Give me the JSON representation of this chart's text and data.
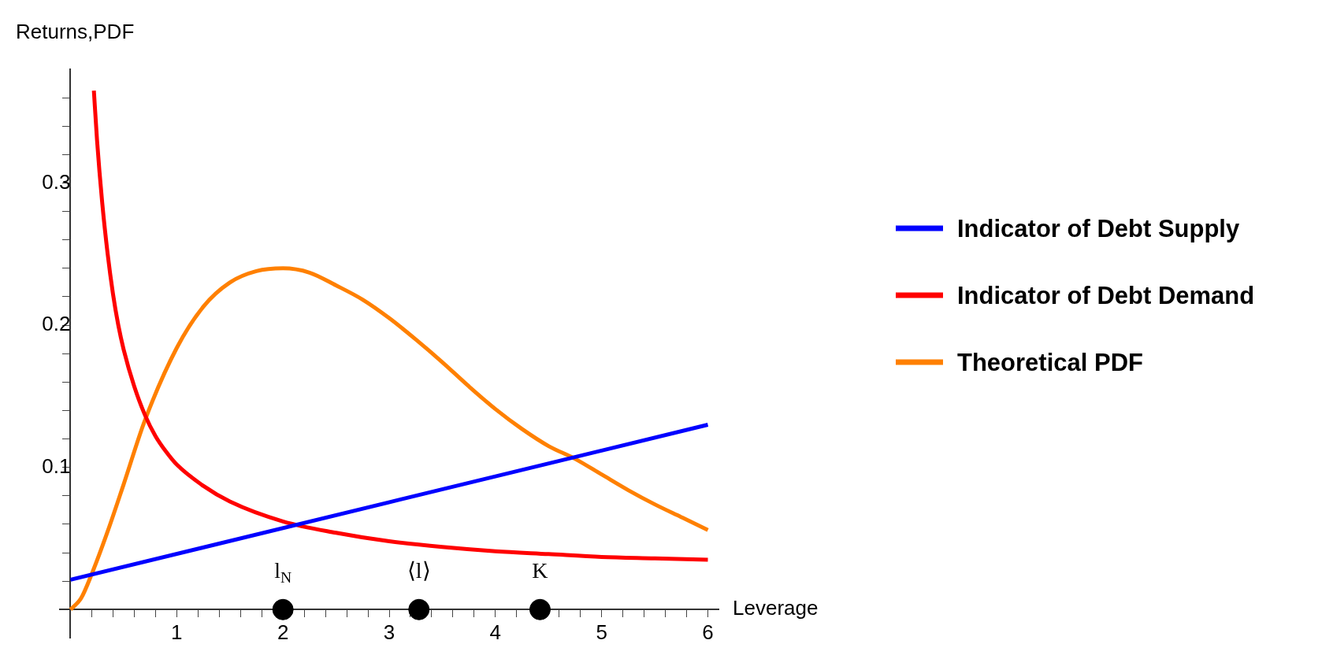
{
  "chart_data": {
    "type": "line",
    "xlabel": "Leverage",
    "ylabel": "Returns,PDF",
    "legend": "right",
    "marker": "none",
    "line_style": "solid",
    "grid": false,
    "xlim": [
      -0.1,
      6.1
    ],
    "ylim": [
      -0.02,
      0.38
    ],
    "xticks": [
      {
        "value": 0.2,
        "label": null
      },
      {
        "value": 0.4,
        "label": null
      },
      {
        "value": 0.6,
        "label": null
      },
      {
        "value": 0.8,
        "label": null
      },
      1,
      {
        "value": 1.2,
        "label": null
      },
      {
        "value": 1.4,
        "label": null
      },
      {
        "value": 1.6,
        "label": null
      },
      {
        "value": 1.8,
        "label": null
      },
      2,
      {
        "value": 2.2,
        "label": null
      },
      {
        "value": 2.4,
        "label": null
      },
      {
        "value": 2.6,
        "label": null
      },
      {
        "value": 2.8,
        "label": null
      },
      3,
      {
        "value": 3.2,
        "label": null
      },
      {
        "value": 3.4,
        "label": null
      },
      {
        "value": 3.6,
        "label": null
      },
      {
        "value": 3.8,
        "label": null
      },
      4,
      {
        "value": 4.2,
        "label": null
      },
      {
        "value": 4.4,
        "label": null
      },
      {
        "value": 4.6,
        "label": null
      },
      {
        "value": 4.8,
        "label": null
      },
      5,
      {
        "value": 5.2,
        "label": null
      },
      {
        "value": 5.4,
        "label": null
      },
      {
        "value": 5.6,
        "label": null
      },
      {
        "value": 5.8,
        "label": null
      },
      6
    ],
    "yticks": [
      {
        "value": 0.02,
        "label": null
      },
      {
        "value": 0.04,
        "label": null
      },
      {
        "value": 0.06,
        "label": null
      },
      {
        "value": 0.08,
        "label": null
      },
      0.1,
      {
        "value": 0.12,
        "label": null
      },
      {
        "value": 0.14,
        "label": null
      },
      {
        "value": 0.16,
        "label": null
      },
      {
        "value": 0.18,
        "label": null
      },
      0.2,
      {
        "value": 0.22,
        "label": null
      },
      {
        "value": 0.24,
        "label": null
      },
      {
        "value": 0.26,
        "label": null
      },
      {
        "value": 0.28,
        "label": null
      },
      0.3,
      {
        "value": 0.32,
        "label": null
      },
      {
        "value": 0.34,
        "label": null
      },
      {
        "value": 0.36,
        "label": null
      }
    ],
    "series": [
      {
        "name": "Indicator of Debt Supply",
        "color": "#0000ff",
        "x": [
          0,
          6
        ],
        "values": [
          0.021,
          0.13
        ]
      },
      {
        "name": "Indicator of Debt Demand",
        "color": "#ff0000",
        "x": [
          0.22,
          0.25,
          0.3,
          0.35,
          0.4,
          0.45,
          0.5,
          0.6,
          0.7,
          0.8,
          0.9,
          1,
          1.25,
          1.5,
          2,
          2.5,
          3,
          3.5,
          4,
          4.5,
          5,
          5.5,
          6
        ],
        "values": [
          0.365,
          0.33,
          0.285,
          0.25,
          0.222,
          0.2,
          0.183,
          0.157,
          0.137,
          0.122,
          0.111,
          0.102,
          0.087,
          0.076,
          0.062,
          0.054,
          0.048,
          0.044,
          0.041,
          0.039,
          0.037,
          0.036,
          0.035
        ]
      },
      {
        "name": "Theoretical PDF",
        "color": "#ff8000",
        "x": [
          0,
          0.1,
          0.2,
          0.35,
          0.5,
          0.7,
          1,
          1.25,
          1.5,
          1.75,
          2,
          2.25,
          2.5,
          2.75,
          3,
          3.25,
          3.5,
          3.75,
          4,
          4.25,
          4.5,
          4.75,
          5,
          5.25,
          5.5,
          5.75,
          6
        ],
        "values": [
          0,
          0.008,
          0.025,
          0.055,
          0.088,
          0.133,
          0.184,
          0.213,
          0.23,
          0.238,
          0.24,
          0.237,
          0.228,
          0.218,
          0.205,
          0.19,
          0.174,
          0.157,
          0.141,
          0.127,
          0.115,
          0.106,
          0.095,
          0.084,
          0.074,
          0.065,
          0.056
        ]
      },
      {
        "type": "scatter",
        "color": "#000000",
        "marker": "circle",
        "x": [
          2,
          3.28,
          4.42
        ],
        "values": [
          0,
          0,
          0
        ]
      }
    ],
    "annotations": [
      {
        "text": "l$_{N}$",
        "x": 2,
        "y": 0
      },
      {
        "text": "⟨l⟩",
        "x": 3.28,
        "y": 0
      },
      {
        "text": "K",
        "x": 4.42,
        "y": 0
      }
    ]
  }
}
